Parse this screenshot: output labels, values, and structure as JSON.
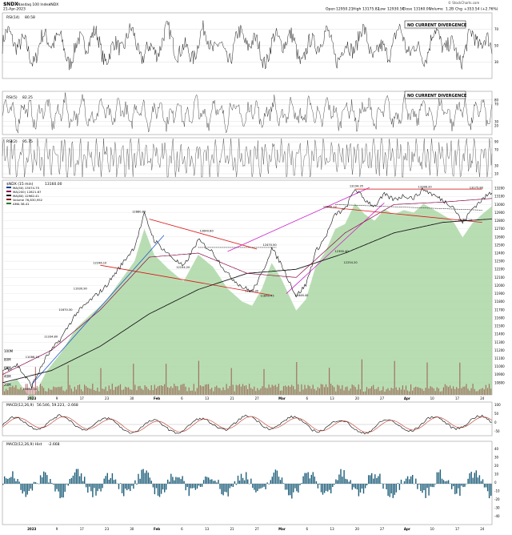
{
  "header": {
    "symbol": "$NDX",
    "name": "Nasdaq 100 Index",
    "exchange": "INDX",
    "date": "21-Apr-2023",
    "open_label": "Open",
    "open_value": "12950.21",
    "high_label": "High",
    "high_value": "13175.82",
    "low_label": "Low",
    "low_value": "12930.50",
    "close_label": "Close",
    "close_value": "13160.00",
    "volume_label": "Volume",
    "volume_value": "1.2B",
    "change_label": "Chg",
    "change_value": "+353.54 (+2.76%)",
    "source": "© StockCharts.com"
  },
  "panels": {
    "rsi14": {
      "label": "RSI(14)",
      "value": "80.58",
      "note": "NO CURRENT DIVERGENCE",
      "levels": [
        70,
        50,
        30
      ]
    },
    "rsi5": {
      "label": "RSI(5)",
      "value": "82.25",
      "note": "NO CURRENT DIVERGENCE",
      "levels": [
        80,
        70,
        30,
        20
      ]
    },
    "rsi2": {
      "label": "RSI(2)",
      "value": "95.75",
      "levels": [
        90,
        70,
        30,
        10
      ]
    },
    "main": {
      "label": "$NDX (15 min)",
      "last": "13160.00",
      "legend": [
        "MA(50) 13074.75",
        "MA(200) 12821.87",
        "MA(80) 12962.41",
        "Volume 76,830,952",
        "AMA 38.41"
      ]
    },
    "macd1": {
      "label": "MACD(12,26,9)",
      "values": "56.546, 59.223, -2.668"
    },
    "macd2": {
      "label": "MACD(12,26,9) Hist",
      "value": "-2.668"
    }
  },
  "chart_data": {
    "type": "line",
    "title": "$NDX Nasdaq 100 Index 15 min",
    "y_ticks": [
      13200,
      13100,
      13000,
      12900,
      12800,
      12700,
      12600,
      12500,
      12400,
      12300,
      12200,
      12100,
      12000,
      11900,
      11800,
      11700,
      11600,
      11500,
      11400,
      11300,
      11200,
      11100,
      11000,
      10900,
      10800
    ],
    "volume_ticks": [
      "100M",
      "80M",
      "60M",
      "40M",
      "20M"
    ],
    "x_ticks": [
      "2023",
      "9",
      "17",
      "23",
      "30",
      "Feb",
      "6",
      "13",
      "21",
      "27",
      "Mar",
      "6",
      "13",
      "20",
      "27",
      "Apr",
      "10",
      "17",
      "24"
    ],
    "annotations": [
      {
        "text": "13194.35",
        "x": 0.722,
        "y": 13194.35
      },
      {
        "text": "13188.20",
        "x": 0.862,
        "y": 13188.2
      },
      {
        "text": "13175.80",
        "x": 0.967,
        "y": 13175.8
      },
      {
        "text": "12940.12",
        "x": 0.668,
        "y": 12940.12
      },
      {
        "text": "12880.80",
        "x": 0.278,
        "y": 12880.8
      },
      {
        "text": "12774.20",
        "x": 0.944,
        "y": 12774.2
      },
      {
        "text": "12640.80",
        "x": 0.416,
        "y": 12640.8
      },
      {
        "text": "12470.50",
        "x": 0.545,
        "y": 12470.5
      },
      {
        "text": "12390.40",
        "x": 0.692,
        "y": 12390.4
      },
      {
        "text": "12254.20",
        "x": 0.71,
        "y": 12254.2
      },
      {
        "text": "12246.10",
        "x": 0.198,
        "y": 12246.1
      },
      {
        "text": "12194.20",
        "x": 0.368,
        "y": 12194.2
      },
      {
        "text": "11930.90",
        "x": 0.158,
        "y": 11930.9
      },
      {
        "text": "11900.30",
        "x": 0.508,
        "y": 11900.3
      },
      {
        "text": "11840.45",
        "x": 0.54,
        "y": 11840.45
      },
      {
        "text": "11846.40",
        "x": 0.61,
        "y": 11846.4
      },
      {
        "text": "11670.30",
        "x": 0.128,
        "y": 11670.3
      },
      {
        "text": "11334.80",
        "x": 0.098,
        "y": 11334.8
      },
      {
        "text": "11086.10",
        "x": 0.06,
        "y": 11086.1
      },
      {
        "text": "10690.10",
        "x": 0.055,
        "y": 10690.1
      }
    ],
    "series": [
      {
        "name": "$NDX (15 min)",
        "x": [
          0,
          0.03,
          0.06,
          0.09,
          0.12,
          0.15,
          0.18,
          0.21,
          0.24,
          0.27,
          0.29,
          0.31,
          0.34,
          0.37,
          0.4,
          0.43,
          0.46,
          0.49,
          0.51,
          0.53,
          0.55,
          0.57,
          0.6,
          0.62,
          0.64,
          0.66,
          0.68,
          0.7,
          0.72,
          0.74,
          0.76,
          0.78,
          0.8,
          0.82,
          0.84,
          0.86,
          0.88,
          0.9,
          0.92,
          0.94,
          0.96,
          0.98,
          1.0
        ],
        "y": [
          10950,
          11020,
          10760,
          11120,
          11350,
          11650,
          11820,
          11980,
          12230,
          12480,
          12880,
          12560,
          12380,
          12230,
          12560,
          12410,
          12140,
          11980,
          11930,
          12140,
          12460,
          12260,
          11870,
          12010,
          12420,
          12600,
          12880,
          12940,
          13194,
          13060,
          12980,
          13120,
          13060,
          13110,
          13080,
          13188,
          13120,
          13050,
          12980,
          12774,
          12950,
          13060,
          13160
        ]
      },
      {
        "name": "MA(50)",
        "x": [
          0,
          0.1,
          0.2,
          0.3,
          0.4,
          0.5,
          0.6,
          0.7,
          0.8,
          0.9,
          1.0
        ],
        "y": [
          10900,
          11200,
          11700,
          12350,
          12400,
          12150,
          12100,
          12650,
          13000,
          13030,
          13075
        ]
      },
      {
        "name": "MA(200)",
        "x": [
          0,
          0.1,
          0.2,
          0.3,
          0.4,
          0.5,
          0.6,
          0.7,
          0.8,
          0.9,
          1.0
        ],
        "y": [
          10800,
          10950,
          11250,
          11650,
          11950,
          12150,
          12200,
          12400,
          12650,
          12780,
          12822
        ]
      }
    ],
    "ylim": [
      10650,
      13300
    ]
  }
}
